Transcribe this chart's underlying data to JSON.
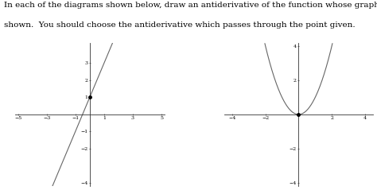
{
  "title_text_line1": "In each of the diagrams shown below, draw an antiderivative of the function whose graph is",
  "title_text_line2": "shown.  You should choose the antiderivative which passes through the point given.",
  "title_fontsize": 7.5,
  "title_family": "serif",
  "plot1": {
    "xlim": [
      -5.2,
      5.2
    ],
    "ylim": [
      -4.2,
      4.2
    ],
    "xticks": [
      -5,
      -3,
      -1,
      1,
      3,
      5
    ],
    "yticks": [
      -4,
      -2,
      -1,
      1,
      2,
      3
    ],
    "slope": 2.0,
    "intercept": 1.0,
    "dot_x": 0,
    "dot_y": 1,
    "dot_size": 2.5,
    "line_color": "#666666",
    "line_width": 0.8,
    "axis_color": "#333333",
    "axis_lw": 0.6,
    "tick_labelsize": 4.5
  },
  "plot2": {
    "xlim": [
      -4.5,
      4.5
    ],
    "ylim": [
      -4.2,
      4.2
    ],
    "xticks": [
      -4,
      -2,
      2,
      4
    ],
    "yticks": [
      -4,
      -2,
      2,
      4
    ],
    "parabola_a": 1,
    "dot_x": 0,
    "dot_y": 0,
    "dot_size": 2.5,
    "line_color": "#666666",
    "line_width": 0.8,
    "axis_color": "#333333",
    "axis_lw": 0.6,
    "tick_labelsize": 4.5
  },
  "bg_color": "#ffffff",
  "figsize": [
    4.74,
    2.44
  ],
  "dpi": 100
}
